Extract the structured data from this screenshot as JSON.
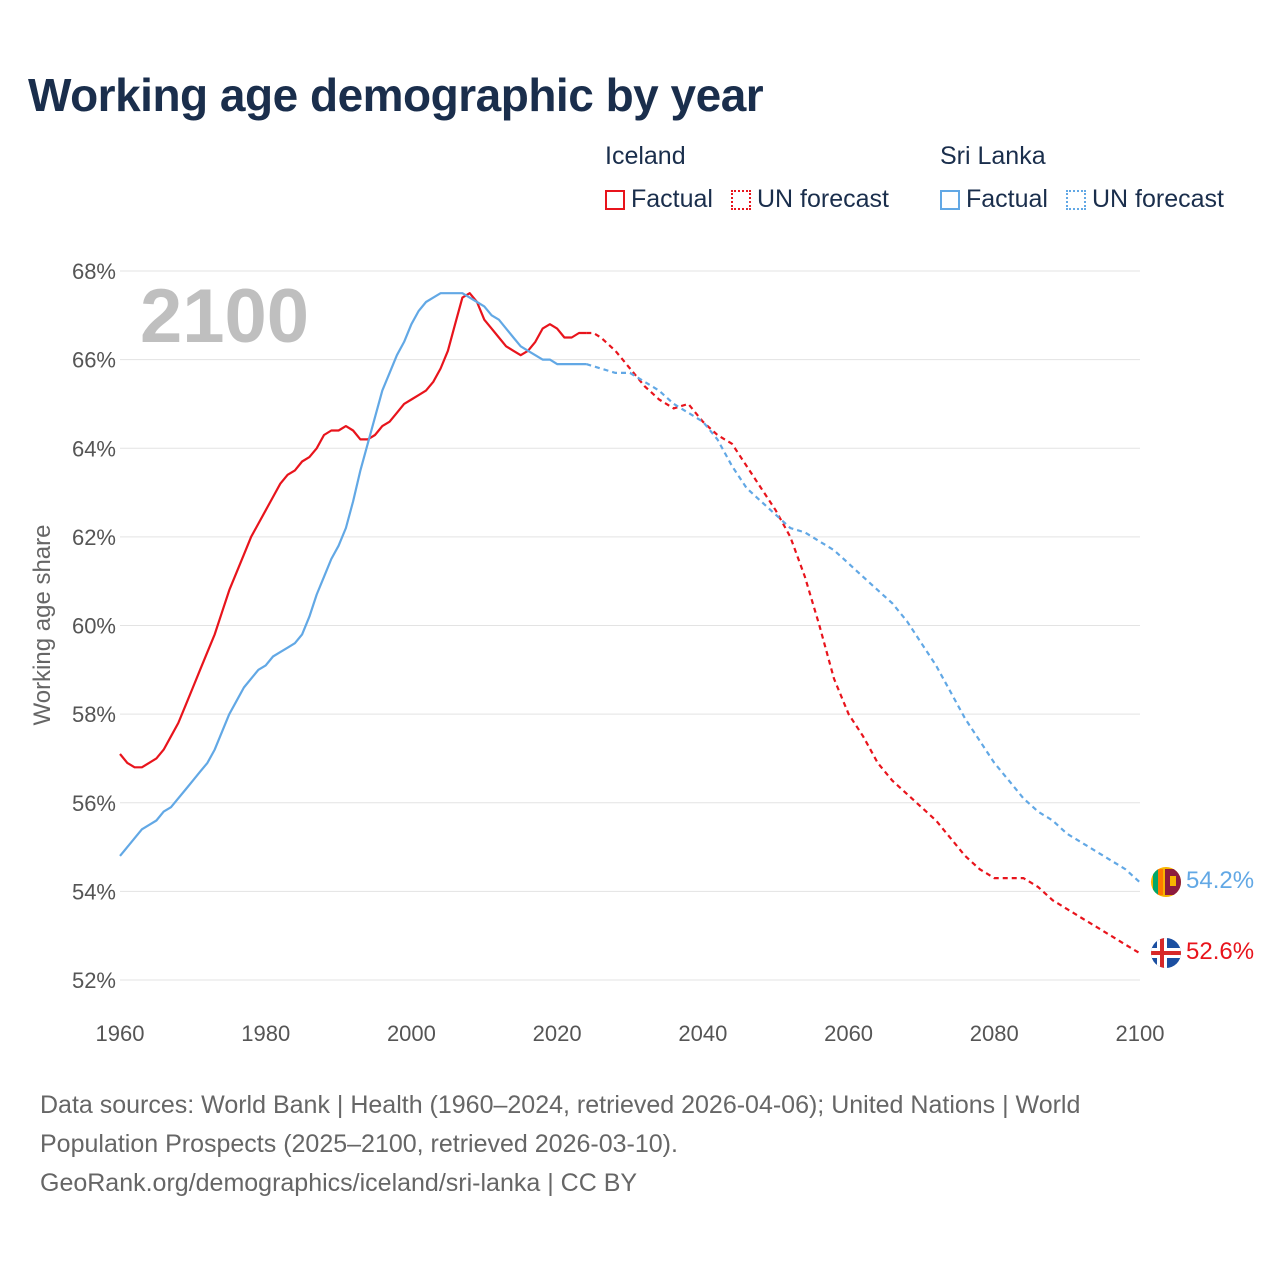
{
  "title": "Working age demographic by year",
  "legend": {
    "groups": [
      {
        "name": "Iceland",
        "factual_label": "Factual",
        "forecast_label": "UN forecast",
        "color": "#e8141c"
      },
      {
        "name": "Sri Lanka",
        "factual_label": "Factual",
        "forecast_label": "UN forecast",
        "color": "#62a8e5"
      }
    ]
  },
  "footer": {
    "line1": "Data sources: World Bank | Health (1960–2024, retrieved 2026-04-06); United Nations | World",
    "line2": "Population Prospects (2025–2100, retrieved 2026-03-10).",
    "line3": "GeoRank.org/demographics/iceland/sri-lanka | CC BY"
  },
  "chart_data": {
    "type": "line",
    "title": "Working age demographic by year",
    "ylabel": "Working age share",
    "xlabel": "",
    "year_watermark": "2100",
    "xlim": [
      1960,
      2100
    ],
    "ylim": [
      52,
      68
    ],
    "x_ticks": [
      "1960",
      "1980",
      "2000",
      "2020",
      "2040",
      "2060",
      "2080",
      "2100"
    ],
    "y_ticks": [
      "68%",
      "66%",
      "64%",
      "62%",
      "60%",
      "58%",
      "56%",
      "54%",
      "52%"
    ],
    "forecast_start": 2024,
    "series": [
      {
        "name": "Iceland",
        "color": "#e8141c",
        "end_label": "52.6%",
        "flag": "iceland-flag",
        "points": [
          [
            1960,
            57.1
          ],
          [
            1961,
            56.9
          ],
          [
            1962,
            56.8
          ],
          [
            1963,
            56.8
          ],
          [
            1964,
            56.9
          ],
          [
            1965,
            57.0
          ],
          [
            1966,
            57.2
          ],
          [
            1967,
            57.5
          ],
          [
            1968,
            57.8
          ],
          [
            1969,
            58.2
          ],
          [
            1970,
            58.6
          ],
          [
            1971,
            59.0
          ],
          [
            1972,
            59.4
          ],
          [
            1973,
            59.8
          ],
          [
            1974,
            60.3
          ],
          [
            1975,
            60.8
          ],
          [
            1976,
            61.2
          ],
          [
            1977,
            61.6
          ],
          [
            1978,
            62.0
          ],
          [
            1979,
            62.3
          ],
          [
            1980,
            62.6
          ],
          [
            1981,
            62.9
          ],
          [
            1982,
            63.2
          ],
          [
            1983,
            63.4
          ],
          [
            1984,
            63.5
          ],
          [
            1985,
            63.7
          ],
          [
            1986,
            63.8
          ],
          [
            1987,
            64.0
          ],
          [
            1988,
            64.3
          ],
          [
            1989,
            64.4
          ],
          [
            1990,
            64.4
          ],
          [
            1991,
            64.5
          ],
          [
            1992,
            64.4
          ],
          [
            1993,
            64.2
          ],
          [
            1994,
            64.2
          ],
          [
            1995,
            64.3
          ],
          [
            1996,
            64.5
          ],
          [
            1997,
            64.6
          ],
          [
            1998,
            64.8
          ],
          [
            1999,
            65.0
          ],
          [
            2000,
            65.1
          ],
          [
            2001,
            65.2
          ],
          [
            2002,
            65.3
          ],
          [
            2003,
            65.5
          ],
          [
            2004,
            65.8
          ],
          [
            2005,
            66.2
          ],
          [
            2006,
            66.8
          ],
          [
            2007,
            67.4
          ],
          [
            2008,
            67.5
          ],
          [
            2009,
            67.3
          ],
          [
            2010,
            66.9
          ],
          [
            2011,
            66.7
          ],
          [
            2012,
            66.5
          ],
          [
            2013,
            66.3
          ],
          [
            2014,
            66.2
          ],
          [
            2015,
            66.1
          ],
          [
            2016,
            66.2
          ],
          [
            2017,
            66.4
          ],
          [
            2018,
            66.7
          ],
          [
            2019,
            66.8
          ],
          [
            2020,
            66.7
          ],
          [
            2021,
            66.5
          ],
          [
            2022,
            66.5
          ],
          [
            2023,
            66.6
          ],
          [
            2024,
            66.6
          ],
          [
            2025,
            66.6
          ],
          [
            2026,
            66.5
          ],
          [
            2028,
            66.2
          ],
          [
            2030,
            65.8
          ],
          [
            2032,
            65.4
          ],
          [
            2034,
            65.1
          ],
          [
            2036,
            64.9
          ],
          [
            2038,
            65.0
          ],
          [
            2040,
            64.6
          ],
          [
            2042,
            64.3
          ],
          [
            2044,
            64.1
          ],
          [
            2046,
            63.6
          ],
          [
            2048,
            63.1
          ],
          [
            2050,
            62.6
          ],
          [
            2052,
            62.0
          ],
          [
            2054,
            61.1
          ],
          [
            2056,
            60.0
          ],
          [
            2058,
            58.8
          ],
          [
            2060,
            58.0
          ],
          [
            2062,
            57.5
          ],
          [
            2064,
            56.9
          ],
          [
            2066,
            56.5
          ],
          [
            2068,
            56.2
          ],
          [
            2070,
            55.9
          ],
          [
            2072,
            55.6
          ],
          [
            2074,
            55.2
          ],
          [
            2076,
            54.8
          ],
          [
            2078,
            54.5
          ],
          [
            2080,
            54.3
          ],
          [
            2084,
            54.3
          ],
          [
            2086,
            54.1
          ],
          [
            2088,
            53.8
          ],
          [
            2090,
            53.6
          ],
          [
            2092,
            53.4
          ],
          [
            2094,
            53.2
          ],
          [
            2096,
            53.0
          ],
          [
            2098,
            52.8
          ],
          [
            2100,
            52.6
          ]
        ]
      },
      {
        "name": "Sri Lanka",
        "color": "#62a8e5",
        "end_label": "54.2%",
        "flag": "sri-lanka-flag",
        "points": [
          [
            1960,
            54.8
          ],
          [
            1961,
            55.0
          ],
          [
            1962,
            55.2
          ],
          [
            1963,
            55.4
          ],
          [
            1964,
            55.5
          ],
          [
            1965,
            55.6
          ],
          [
            1966,
            55.8
          ],
          [
            1967,
            55.9
          ],
          [
            1968,
            56.1
          ],
          [
            1969,
            56.3
          ],
          [
            1970,
            56.5
          ],
          [
            1971,
            56.7
          ],
          [
            1972,
            56.9
          ],
          [
            1973,
            57.2
          ],
          [
            1974,
            57.6
          ],
          [
            1975,
            58.0
          ],
          [
            1976,
            58.3
          ],
          [
            1977,
            58.6
          ],
          [
            1978,
            58.8
          ],
          [
            1979,
            59.0
          ],
          [
            1980,
            59.1
          ],
          [
            1981,
            59.3
          ],
          [
            1982,
            59.4
          ],
          [
            1983,
            59.5
          ],
          [
            1984,
            59.6
          ],
          [
            1985,
            59.8
          ],
          [
            1986,
            60.2
          ],
          [
            1987,
            60.7
          ],
          [
            1988,
            61.1
          ],
          [
            1989,
            61.5
          ],
          [
            1990,
            61.8
          ],
          [
            1991,
            62.2
          ],
          [
            1992,
            62.8
          ],
          [
            1993,
            63.5
          ],
          [
            1994,
            64.1
          ],
          [
            1995,
            64.7
          ],
          [
            1996,
            65.3
          ],
          [
            1997,
            65.7
          ],
          [
            1998,
            66.1
          ],
          [
            1999,
            66.4
          ],
          [
            2000,
            66.8
          ],
          [
            2001,
            67.1
          ],
          [
            2002,
            67.3
          ],
          [
            2003,
            67.4
          ],
          [
            2004,
            67.5
          ],
          [
            2005,
            67.5
          ],
          [
            2006,
            67.5
          ],
          [
            2007,
            67.5
          ],
          [
            2008,
            67.4
          ],
          [
            2009,
            67.3
          ],
          [
            2010,
            67.2
          ],
          [
            2011,
            67.0
          ],
          [
            2012,
            66.9
          ],
          [
            2013,
            66.7
          ],
          [
            2014,
            66.5
          ],
          [
            2015,
            66.3
          ],
          [
            2016,
            66.2
          ],
          [
            2017,
            66.1
          ],
          [
            2018,
            66.0
          ],
          [
            2019,
            66.0
          ],
          [
            2020,
            65.9
          ],
          [
            2022,
            65.9
          ],
          [
            2024,
            65.9
          ],
          [
            2026,
            65.8
          ],
          [
            2028,
            65.7
          ],
          [
            2030,
            65.7
          ],
          [
            2032,
            65.5
          ],
          [
            2034,
            65.3
          ],
          [
            2036,
            65.0
          ],
          [
            2038,
            64.8
          ],
          [
            2040,
            64.6
          ],
          [
            2042,
            64.2
          ],
          [
            2044,
            63.6
          ],
          [
            2046,
            63.1
          ],
          [
            2048,
            62.8
          ],
          [
            2050,
            62.5
          ],
          [
            2052,
            62.2
          ],
          [
            2054,
            62.1
          ],
          [
            2056,
            61.9
          ],
          [
            2058,
            61.7
          ],
          [
            2060,
            61.4
          ],
          [
            2062,
            61.1
          ],
          [
            2064,
            60.8
          ],
          [
            2066,
            60.5
          ],
          [
            2068,
            60.1
          ],
          [
            2070,
            59.6
          ],
          [
            2072,
            59.1
          ],
          [
            2074,
            58.5
          ],
          [
            2076,
            57.9
          ],
          [
            2078,
            57.4
          ],
          [
            2080,
            56.9
          ],
          [
            2082,
            56.5
          ],
          [
            2084,
            56.1
          ],
          [
            2086,
            55.8
          ],
          [
            2088,
            55.6
          ],
          [
            2090,
            55.3
          ],
          [
            2092,
            55.1
          ],
          [
            2094,
            54.9
          ],
          [
            2096,
            54.7
          ],
          [
            2098,
            54.5
          ],
          [
            2100,
            54.2
          ]
        ]
      }
    ]
  }
}
